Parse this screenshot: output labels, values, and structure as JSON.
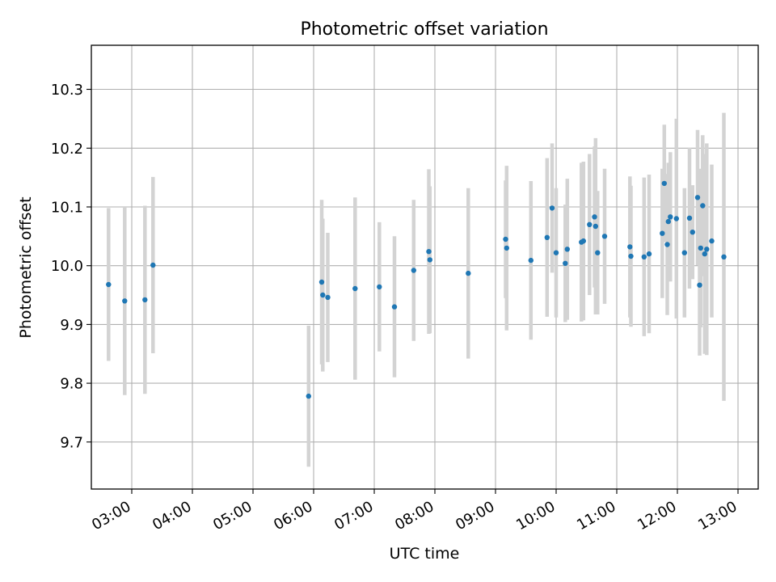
{
  "chart_data": {
    "type": "scatter",
    "title": "Photometric offset variation",
    "xlabel": "UTC time",
    "ylabel": "Photometric offset",
    "grid": true,
    "x_scale": "time",
    "xlim": [
      "02:20",
      "13:20"
    ],
    "ylim": [
      9.62,
      10.375
    ],
    "x_ticks": [
      "03:00",
      "04:00",
      "05:00",
      "06:00",
      "07:00",
      "08:00",
      "09:00",
      "10:00",
      "11:00",
      "12:00",
      "13:00"
    ],
    "y_ticks": [
      9.7,
      9.8,
      9.9,
      10.0,
      10.1,
      10.2,
      10.3
    ],
    "y_tick_labels": [
      "9.7",
      "9.8",
      "9.9",
      "10.0",
      "10.1",
      "10.2",
      "10.3"
    ],
    "colors": {
      "points": "#1f77b4",
      "errorbars": "#d3d3d3",
      "grid": "#b0b0b0"
    },
    "series": [
      {
        "x": [
          "02:37",
          "02:53",
          "03:13",
          "03:21",
          "05:55",
          "06:08",
          "06:09",
          "06:14",
          "06:41",
          "07:05",
          "07:20",
          "07:39",
          "07:54",
          "07:55",
          "08:33",
          "09:10",
          "09:11",
          "09:35",
          "09:51",
          "09:56",
          "10:00",
          "10:09",
          "10:11",
          "10:25",
          "10:27",
          "10:33",
          "10:38",
          "10:39",
          "10:41",
          "10:48",
          "11:13",
          "11:14",
          "11:27",
          "11:32",
          "11:45",
          "11:47",
          "11:50",
          "11:51",
          "11:53",
          "11:59",
          "12:07",
          "12:12",
          "12:15",
          "12:20",
          "12:22",
          "12:23",
          "12:25",
          "12:27",
          "12:29",
          "12:34",
          "12:46"
        ],
        "y": [
          9.968,
          9.94,
          9.942,
          10.001,
          9.778,
          9.972,
          9.95,
          9.946,
          9.961,
          9.964,
          9.93,
          9.992,
          10.024,
          10.01,
          9.987,
          10.045,
          10.03,
          10.009,
          10.048,
          10.098,
          10.022,
          10.004,
          10.028,
          10.04,
          10.042,
          10.07,
          10.083,
          10.067,
          10.022,
          10.05,
          10.032,
          10.016,
          10.015,
          10.02,
          10.055,
          10.14,
          10.036,
          10.075,
          10.083,
          10.08,
          10.022,
          10.081,
          10.057,
          10.116,
          9.967,
          10.03,
          10.102,
          10.02,
          10.028,
          10.042,
          10.015
        ],
        "yerr": [
          0.13,
          0.16,
          0.16,
          0.15,
          0.12,
          0.14,
          0.13,
          0.11,
          0.155,
          0.11,
          0.12,
          0.12,
          0.14,
          0.125,
          0.145,
          0.1,
          0.14,
          0.135,
          0.135,
          0.11,
          0.11,
          0.1,
          0.12,
          0.135,
          0.135,
          0.12,
          0.12,
          0.15,
          0.105,
          0.115,
          0.12,
          0.12,
          0.135,
          0.135,
          0.11,
          0.1,
          0.12,
          0.1,
          0.11,
          0.17,
          0.11,
          0.12,
          0.08,
          0.115,
          0.12,
          0.135,
          0.12,
          0.17,
          0.18,
          0.13,
          0.245
        ]
      }
    ]
  }
}
